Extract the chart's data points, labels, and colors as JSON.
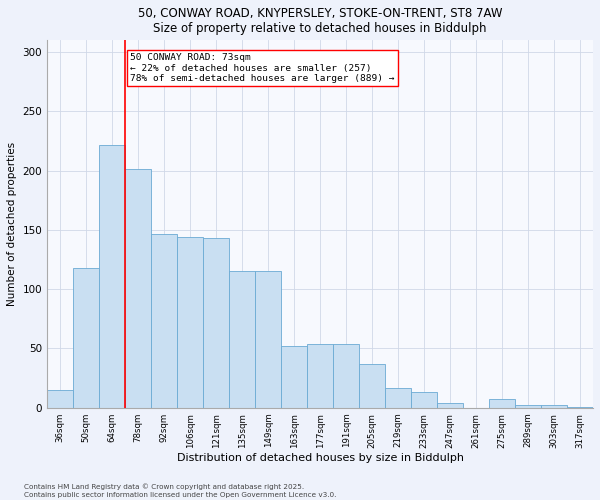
{
  "title_line1": "50, CONWAY ROAD, KNYPERSLEY, STOKE-ON-TRENT, ST8 7AW",
  "title_line2": "Size of property relative to detached houses in Biddulph",
  "xlabel": "Distribution of detached houses by size in Biddulph",
  "ylabel": "Number of detached properties",
  "bin_labels": [
    "36sqm",
    "50sqm",
    "64sqm",
    "78sqm",
    "92sqm",
    "106sqm",
    "121sqm",
    "135sqm",
    "149sqm",
    "163sqm",
    "177sqm",
    "191sqm",
    "205sqm",
    "219sqm",
    "233sqm",
    "247sqm",
    "261sqm",
    "275sqm",
    "289sqm",
    "303sqm",
    "317sqm"
  ],
  "values": [
    15,
    118,
    222,
    201,
    147,
    144,
    143,
    115,
    115,
    52,
    54,
    54,
    37,
    17,
    13,
    4,
    0,
    7,
    2,
    2,
    1
  ],
  "bar_color": "#c9dff2",
  "bar_edge_color": "#6aaad4",
  "vline_pos": 2.5,
  "vline_color": "red",
  "annotation_text": "50 CONWAY ROAD: 73sqm\n← 22% of detached houses are smaller (257)\n78% of semi-detached houses are larger (889) →",
  "annotation_box_color": "white",
  "annotation_box_edge": "red",
  "ylim": [
    0,
    310
  ],
  "yticks": [
    0,
    50,
    100,
    150,
    200,
    250,
    300
  ],
  "footer_line1": "Contains HM Land Registry data © Crown copyright and database right 2025.",
  "footer_line2": "Contains public sector information licensed under the Open Government Licence v3.0.",
  "bg_color": "#eef2fb",
  "plot_bg_color": "#f7f9fe",
  "grid_color": "#d0d8e8"
}
